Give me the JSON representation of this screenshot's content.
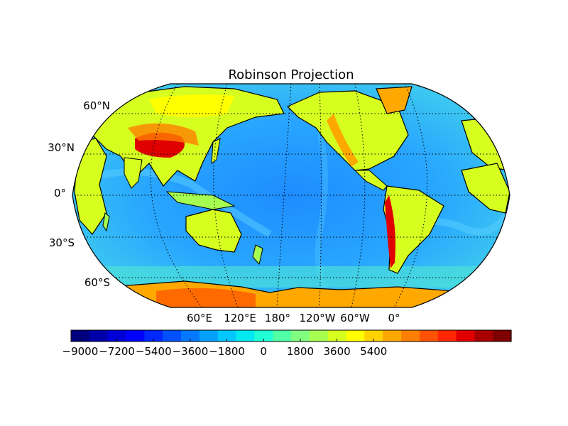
{
  "title": "Robinson Projection",
  "map": {
    "projection": "Robinson",
    "central_meridian": "180°",
    "graticule": "dotted",
    "parallel_labels": [
      "60°N",
      "30°N",
      "0°",
      "30°S",
      "60°S"
    ],
    "meridian_labels": [
      "60°E",
      "120°E",
      "180°",
      "120°W",
      "60°W",
      "0°"
    ]
  },
  "colorbar": {
    "orientation": "horizontal",
    "colormap": "jet",
    "tick_labels": [
      "−9000",
      "−7200",
      "−5400",
      "−3600",
      "−1800",
      "0",
      "1800",
      "3600",
      "5400"
    ],
    "colors": [
      "#00007f",
      "#0000a8",
      "#0000d6",
      "#0000ff",
      "#0028ff",
      "#0050ff",
      "#0078ff",
      "#00a0ff",
      "#00c8ff",
      "#00e8f0",
      "#20ffd6",
      "#50ffa6",
      "#80ff80",
      "#a6ff50",
      "#d6ff20",
      "#ffff00",
      "#ffd200",
      "#ffa800",
      "#ff8000",
      "#ff5200",
      "#ff2600",
      "#e00000",
      "#a80000",
      "#7f0000"
    ]
  }
}
